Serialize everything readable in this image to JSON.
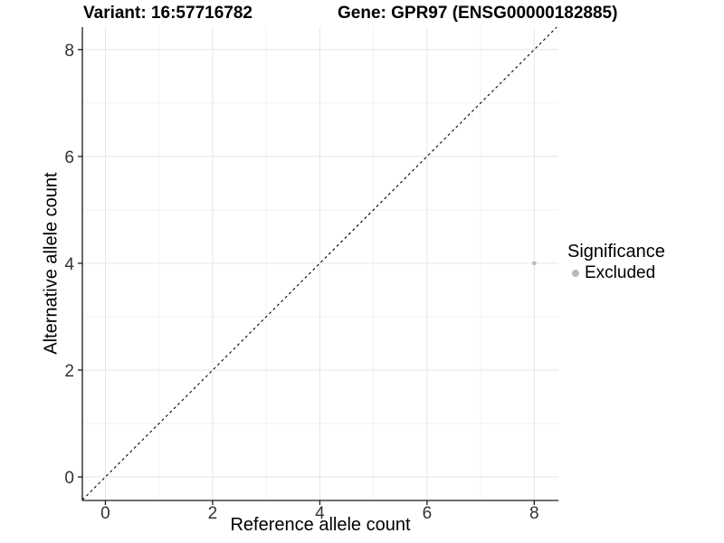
{
  "chart_data": {
    "type": "scatter",
    "title_left": "Variant: 16:57716782",
    "title_right": "Gene: GPR97 (ENSG00000182885)",
    "xlabel": "Reference allele count",
    "ylabel": "Alternative allele count",
    "xlim": [
      -0.43,
      8.45
    ],
    "ylim": [
      -0.44,
      8.42
    ],
    "xticks": [
      0,
      2,
      4,
      6,
      8
    ],
    "yticks": [
      0,
      2,
      4,
      6,
      8
    ],
    "xticks_minor": [
      1,
      3,
      5,
      7
    ],
    "yticks_minor": [
      1,
      3,
      5,
      7
    ],
    "grid": "major and minor gridlines, white panel background",
    "identity_line": {
      "equation": "y = x",
      "style": "dashed",
      "color": "#000000"
    },
    "series": [
      {
        "name": "Excluded",
        "color": "#b9b9b9",
        "points": [
          {
            "x": 8,
            "y": 4
          }
        ]
      }
    ],
    "legend": {
      "title": "Significance",
      "position": "right",
      "items": [
        {
          "label": "Excluded",
          "color": "#b9b9b9"
        }
      ]
    },
    "colors": {
      "grid_major": "#e5e5e5",
      "grid_minor": "#f2f2f2",
      "axis": "#1a1a1a",
      "tick_label": "#333333"
    }
  }
}
